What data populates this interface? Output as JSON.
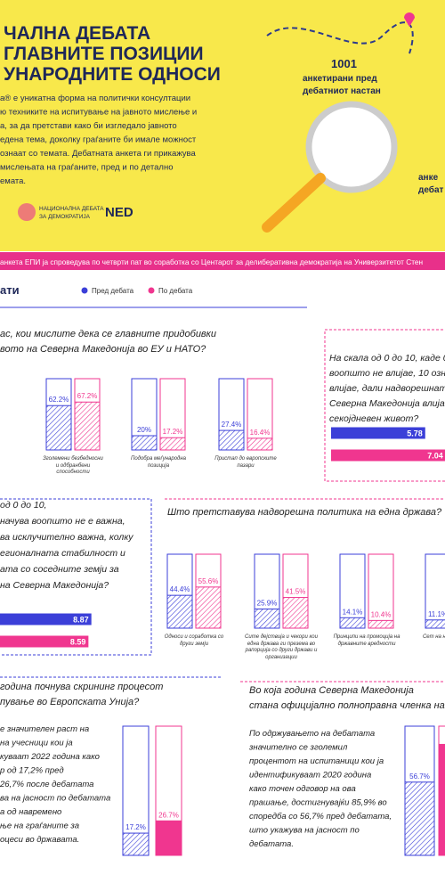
{
  "header": {
    "title_lines": [
      "ЧАЛНА ДЕБАТА",
      "ГЛАВНИТЕ ПОЗИЦИИ",
      "УНАРОДНИТЕ ОДНОСИ"
    ],
    "intro_lines": [
      "а® е уникатна форма на политички консултации",
      "ю техниките на испитување на јавното мислење и",
      "а, за да претстави како би изгледало јавното",
      "едена тема, доколку граѓаните би имале можност",
      "ознаат со темата. Дебатната анкета ги прикажува",
      " мислењата на граѓаните, пред и по детално",
      "емата."
    ],
    "count": "1001",
    "count_lines": [
      "анкетирани пред",
      "дебатниот настан"
    ],
    "side_lines": [
      "анке",
      "дебат"
    ],
    "logo_lines": [
      "НАЦИОНАЛНА ДЕБАТА",
      "ЗА ДЕМОКРАТИЈА"
    ],
    "logo_2": "NED"
  },
  "banner": "анкета ЕПИ ја спроведува по четврти пат во соработка со Центарот за делиберативна демократија на Универзитетот Стен",
  "section_title": "ати",
  "legend": [
    {
      "label": "Пред дебата",
      "color": "#3b3fd8"
    },
    {
      "label": "По дебата",
      "color": "#f0368f"
    }
  ],
  "charts": [
    {
      "type": "bar",
      "question_lines": [
        "ас, кои мислите дека се главните придобивки",
        "вото на Северна Македонија во ЕУ и НАТО?"
      ],
      "categories": [
        "Зголемени безбедносни и одбранбени способности",
        "Подобра меѓународна позиција",
        "Пристап до европските пазари"
      ],
      "ylim": [
        0,
        100
      ],
      "series": [
        {
          "color": "#3b3fd8",
          "pattern": "hatch",
          "values": [
            62.2,
            20,
            27.4
          ],
          "value_labels": [
            "62.2%",
            "20%",
            "27.4%"
          ]
        },
        {
          "color": "#f0368f",
          "pattern": "hatch",
          "values": [
            67.2,
            17.2,
            16.4
          ],
          "value_labels": [
            "67.2%",
            "17.2%",
            "16.4%"
          ]
        }
      ]
    },
    {
      "type": "hbar",
      "question_lines": [
        "На скала од 0 до 10, каде 0",
        "воопшто не влијае, 10 означу",
        "влијае, дали надворешната п",
        "Северна Македонија влијае в",
        "секојдневен живот?"
      ],
      "xlim": [
        0,
        10
      ],
      "series": [
        {
          "color": "#3b3fd8",
          "values": [
            5.78
          ]
        },
        {
          "color": "#f0368f",
          "values": [
            7.04
          ]
        }
      ]
    },
    {
      "type": "hbar",
      "question_lines": [
        "од 0 до 10,",
        "начува воопшто не е важна,",
        "ва исклучително важна, колку",
        "егионалната стабилност и",
        "ата со соседните земји за",
        "на Северна Македонија?"
      ],
      "xlim": [
        0,
        10
      ],
      "series": [
        {
          "color": "#3b3fd8",
          "values": [
            8.87
          ]
        },
        {
          "color": "#f0368f",
          "values": [
            8.59
          ]
        }
      ]
    },
    {
      "type": "bar",
      "question_lines": [
        "Што претставува надворешна политика на една држава?"
      ],
      "categories": [
        "Односи и соработка со други земји",
        "Сите дејствија и чекори кои една држава ги презема во рапорција со други држави и организации",
        "Принципи на промоција на државните вредности",
        "Сет на н кои се со ост"
      ],
      "ylim": [
        0,
        100
      ],
      "series": [
        {
          "color": "#3b3fd8",
          "pattern": "hatch",
          "values": [
            44.4,
            25.9,
            14.1,
            11.1
          ],
          "value_labels": [
            "44.4%",
            "25.9%",
            "14.1%",
            "11.1%"
          ]
        },
        {
          "color": "#f0368f",
          "pattern": "hatch",
          "values": [
            55.6,
            41.5,
            10.4,
            null
          ],
          "value_labels": [
            "55.6%",
            "41.5%",
            "10.4%",
            null
          ]
        }
      ]
    },
    {
      "type": "bar",
      "question_lines": [
        "година почнува скрининг процесот",
        "пување во Европската Унија?"
      ],
      "text_lines": [
        "е значителен раст на",
        "на учесници кои ја",
        "куваат 2022 година како",
        "р од 17,2% пред",
        "26,7% после дебатата",
        "ва на јасност по дебатата",
        "а од навремено",
        "ње на граѓаните за",
        "оцеси во државата."
      ],
      "ylim": [
        0,
        100
      ],
      "series": [
        {
          "color": "#3b3fd8",
          "pattern": "hatch",
          "values": [
            17.2
          ],
          "value_labels": [
            "17.2%"
          ]
        },
        {
          "color": "#f0368f",
          "pattern": "solid",
          "values": [
            26.7
          ],
          "value_labels": [
            "26.7%"
          ]
        }
      ]
    },
    {
      "type": "bar",
      "question_lines": [
        "Во која година Северна Македонија",
        "стана официјално полноправна членка на НА"
      ],
      "text_lines": [
        "По одржувањето на дебатата",
        "значително се зголемил",
        "процентот на испитаници кои ја",
        "идентификуваат 2020 година",
        "како точен одговор на ова",
        "прашање, достигнувајќи 85,9% во",
        "споредба со 56,7% пред дебатата,",
        "што укажува на јасност по",
        "дебатата."
      ],
      "ylim": [
        0,
        100
      ],
      "series": [
        {
          "color": "#3b3fd8",
          "pattern": "hatch",
          "values": [
            56.7
          ],
          "value_labels": [
            "56.7%"
          ]
        },
        {
          "color": "#f0368f",
          "pattern": "solid",
          "values": [
            85.9
          ],
          "value_labels": [
            null
          ]
        }
      ]
    }
  ]
}
